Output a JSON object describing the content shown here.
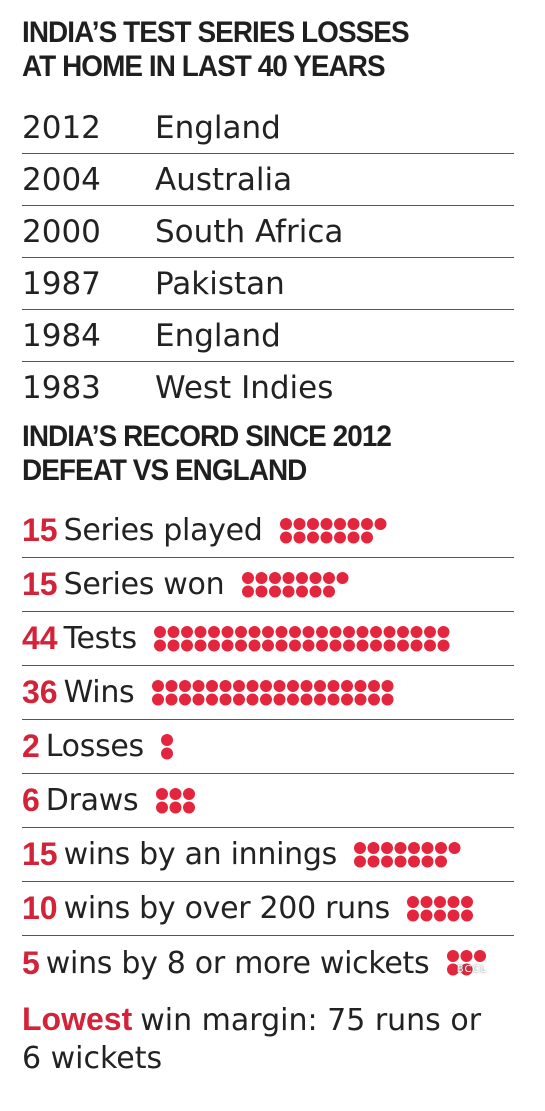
{
  "losses_title": [
    "INDIA’S TEST SERIES LOSSES",
    "AT HOME IN LAST 40 YEARS"
  ],
  "losses": [
    {
      "year": "2012",
      "team": "England"
    },
    {
      "year": "2004",
      "team": "Australia"
    },
    {
      "year": "2000",
      "team": "South Africa"
    },
    {
      "year": "1987",
      "team": "Pakistan"
    },
    {
      "year": "1984",
      "team": "England"
    },
    {
      "year": "1983",
      "team": "West Indies"
    }
  ],
  "record_title": [
    "INDIA’S RECORD SINCE 2012",
    "DEFEAT VS ENGLAND"
  ],
  "chart_data": {
    "type": "table",
    "dot_color": "#e3263e",
    "number_color": "#d42238",
    "rows": [
      {
        "value": 15,
        "value_text": "15",
        "label": "Series played"
      },
      {
        "value": 15,
        "value_text": "15",
        "label": "Series won"
      },
      {
        "value": 44,
        "value_text": "44",
        "label": "Tests"
      },
      {
        "value": 36,
        "value_text": "36",
        "label": "Wins"
      },
      {
        "value": 2,
        "value_text": "2",
        "label": "Losses"
      },
      {
        "value": 6,
        "value_text": "6",
        "label": "Draws"
      },
      {
        "value": 15,
        "value_text": "15",
        "label": "wins by an innings"
      },
      {
        "value": 10,
        "value_text": "10",
        "label": "wins by over 200 runs"
      },
      {
        "value": 5,
        "value_text": "5",
        "label": "wins by 8 or more wickets"
      }
    ]
  },
  "final_note": {
    "highlight": "Lowest",
    "text_line1": "win margin: 75 runs or",
    "text_line2": "6 wickets"
  },
  "watermark": "BCCL"
}
